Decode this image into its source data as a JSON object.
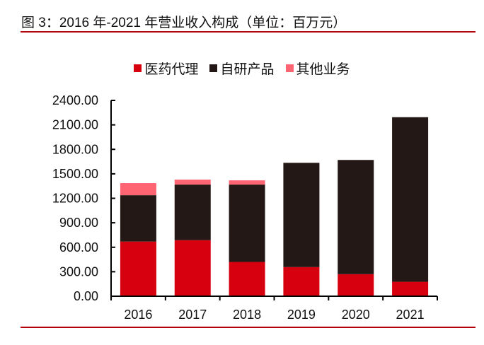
{
  "title": "图 3：2016 年-2021 年营业收入构成（单位：百万元）",
  "chart_data": {
    "type": "bar",
    "stacked": true,
    "categories": [
      "2016",
      "2017",
      "2018",
      "2019",
      "2020",
      "2021"
    ],
    "series": [
      {
        "name": "医药代理",
        "color": "#D7000F",
        "values": [
          670,
          687,
          420,
          357,
          270,
          177
        ]
      },
      {
        "name": "自研产品",
        "color": "#231815",
        "values": [
          568,
          681,
          948,
          1278,
          1400,
          2017
        ]
      },
      {
        "name": "其他业务",
        "color": "#FF6473",
        "values": [
          148,
          61,
          52,
          0,
          0,
          0
        ]
      }
    ],
    "ylim": [
      0,
      2400
    ],
    "yticks": [
      "0.00",
      "300.00",
      "600.00",
      "900.00",
      "1200.00",
      "1500.00",
      "1800.00",
      "2100.00",
      "2400.00"
    ],
    "legend": "top",
    "grid": false
  }
}
